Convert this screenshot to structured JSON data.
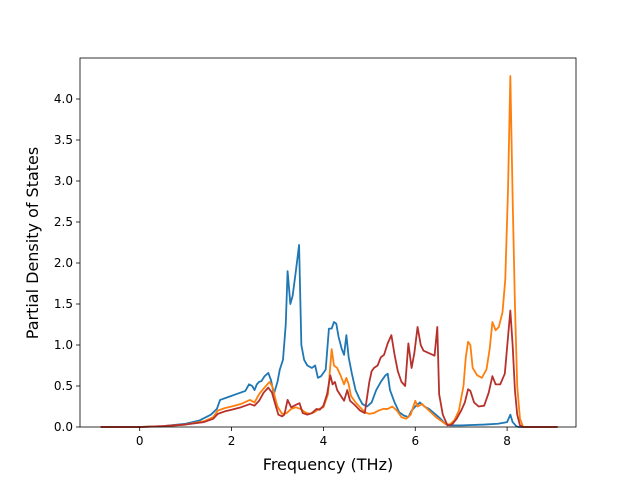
{
  "chart_data": {
    "type": "line",
    "title": "",
    "xlabel": "Frequency (THz)",
    "ylabel": "Partial Density of States",
    "xlim": [
      -1.3,
      9.5
    ],
    "ylim": [
      0.0,
      4.5
    ],
    "xticks": [
      0,
      2,
      4,
      6,
      8
    ],
    "yticks": [
      0.0,
      0.5,
      1.0,
      1.5,
      2.0,
      2.5,
      3.0,
      3.5,
      4.0
    ],
    "xtick_labels": [
      "0",
      "2",
      "4",
      "6",
      "8"
    ],
    "ytick_labels": [
      "0.0",
      "0.5",
      "1.0",
      "1.5",
      "2.0",
      "2.5",
      "3.0",
      "3.5",
      "4.0"
    ],
    "grid": false,
    "legend": false,
    "series": [
      {
        "color": "#1f77b4",
        "points": [
          [
            -0.85,
            0
          ],
          [
            0,
            0
          ],
          [
            0.5,
            0.01
          ],
          [
            1.0,
            0.04
          ],
          [
            1.3,
            0.08
          ],
          [
            1.55,
            0.15
          ],
          [
            1.68,
            0.22
          ],
          [
            1.75,
            0.33
          ],
          [
            1.9,
            0.36
          ],
          [
            2.1,
            0.4
          ],
          [
            2.3,
            0.44
          ],
          [
            2.38,
            0.52
          ],
          [
            2.45,
            0.5
          ],
          [
            2.5,
            0.45
          ],
          [
            2.55,
            0.52
          ],
          [
            2.6,
            0.55
          ],
          [
            2.65,
            0.56
          ],
          [
            2.72,
            0.62
          ],
          [
            2.8,
            0.66
          ],
          [
            2.86,
            0.57
          ],
          [
            2.92,
            0.4
          ],
          [
            3.0,
            0.55
          ],
          [
            3.05,
            0.7
          ],
          [
            3.12,
            0.82
          ],
          [
            3.18,
            1.25
          ],
          [
            3.22,
            1.9
          ],
          [
            3.28,
            1.5
          ],
          [
            3.33,
            1.6
          ],
          [
            3.4,
            1.9
          ],
          [
            3.47,
            2.22
          ],
          [
            3.52,
            1.0
          ],
          [
            3.58,
            0.82
          ],
          [
            3.65,
            0.75
          ],
          [
            3.75,
            0.72
          ],
          [
            3.82,
            0.75
          ],
          [
            3.88,
            0.6
          ],
          [
            3.95,
            0.62
          ],
          [
            4.05,
            0.7
          ],
          [
            4.12,
            1.2
          ],
          [
            4.18,
            1.2
          ],
          [
            4.23,
            1.28
          ],
          [
            4.28,
            1.26
          ],
          [
            4.33,
            1.1
          ],
          [
            4.4,
            0.95
          ],
          [
            4.45,
            0.88
          ],
          [
            4.5,
            1.12
          ],
          [
            4.55,
            0.85
          ],
          [
            4.62,
            0.65
          ],
          [
            4.7,
            0.45
          ],
          [
            4.78,
            0.35
          ],
          [
            4.85,
            0.28
          ],
          [
            4.95,
            0.25
          ],
          [
            5.05,
            0.3
          ],
          [
            5.15,
            0.45
          ],
          [
            5.25,
            0.55
          ],
          [
            5.35,
            0.63
          ],
          [
            5.4,
            0.65
          ],
          [
            5.45,
            0.45
          ],
          [
            5.55,
            0.3
          ],
          [
            5.65,
            0.18
          ],
          [
            5.75,
            0.14
          ],
          [
            5.85,
            0.12
          ],
          [
            5.92,
            0.2
          ],
          [
            6.0,
            0.25
          ],
          [
            6.1,
            0.3
          ],
          [
            6.2,
            0.25
          ],
          [
            6.3,
            0.22
          ],
          [
            6.45,
            0.15
          ],
          [
            6.55,
            0.1
          ],
          [
            6.65,
            0.04
          ],
          [
            6.75,
            0.02
          ],
          [
            7.0,
            0.02
          ],
          [
            7.5,
            0.03
          ],
          [
            7.8,
            0.04
          ],
          [
            8.0,
            0.06
          ],
          [
            8.07,
            0.15
          ],
          [
            8.12,
            0.06
          ],
          [
            8.2,
            0.01
          ],
          [
            8.25,
            0
          ],
          [
            9.1,
            0
          ]
        ]
      },
      {
        "color": "#ff7f0e",
        "points": [
          [
            -0.85,
            0
          ],
          [
            0,
            0
          ],
          [
            0.5,
            0.01
          ],
          [
            1.0,
            0.03
          ],
          [
            1.4,
            0.07
          ],
          [
            1.6,
            0.12
          ],
          [
            1.7,
            0.2
          ],
          [
            1.85,
            0.23
          ],
          [
            2.0,
            0.25
          ],
          [
            2.2,
            0.28
          ],
          [
            2.4,
            0.33
          ],
          [
            2.5,
            0.3
          ],
          [
            2.6,
            0.4
          ],
          [
            2.7,
            0.47
          ],
          [
            2.78,
            0.52
          ],
          [
            2.83,
            0.55
          ],
          [
            2.9,
            0.48
          ],
          [
            2.95,
            0.35
          ],
          [
            3.0,
            0.25
          ],
          [
            3.1,
            0.16
          ],
          [
            3.2,
            0.17
          ],
          [
            3.3,
            0.22
          ],
          [
            3.4,
            0.24
          ],
          [
            3.5,
            0.22
          ],
          [
            3.6,
            0.18
          ],
          [
            3.7,
            0.16
          ],
          [
            3.8,
            0.18
          ],
          [
            3.9,
            0.22
          ],
          [
            4.0,
            0.24
          ],
          [
            4.1,
            0.4
          ],
          [
            4.18,
            0.95
          ],
          [
            4.23,
            0.75
          ],
          [
            4.3,
            0.72
          ],
          [
            4.38,
            0.62
          ],
          [
            4.45,
            0.52
          ],
          [
            4.5,
            0.6
          ],
          [
            4.55,
            0.52
          ],
          [
            4.6,
            0.38
          ],
          [
            4.7,
            0.3
          ],
          [
            4.8,
            0.24
          ],
          [
            4.9,
            0.18
          ],
          [
            5.0,
            0.16
          ],
          [
            5.1,
            0.17
          ],
          [
            5.2,
            0.2
          ],
          [
            5.3,
            0.22
          ],
          [
            5.4,
            0.22
          ],
          [
            5.5,
            0.25
          ],
          [
            5.6,
            0.2
          ],
          [
            5.7,
            0.12
          ],
          [
            5.8,
            0.1
          ],
          [
            5.9,
            0.15
          ],
          [
            6.0,
            0.32
          ],
          [
            6.05,
            0.25
          ],
          [
            6.15,
            0.28
          ],
          [
            6.3,
            0.2
          ],
          [
            6.45,
            0.12
          ],
          [
            6.55,
            0.08
          ],
          [
            6.65,
            0.04
          ],
          [
            6.75,
            0.03
          ],
          [
            6.85,
            0.08
          ],
          [
            6.95,
            0.2
          ],
          [
            7.05,
            0.5
          ],
          [
            7.1,
            0.85
          ],
          [
            7.15,
            1.04
          ],
          [
            7.2,
            1.0
          ],
          [
            7.25,
            0.72
          ],
          [
            7.35,
            0.63
          ],
          [
            7.45,
            0.6
          ],
          [
            7.55,
            0.7
          ],
          [
            7.62,
            0.95
          ],
          [
            7.68,
            1.28
          ],
          [
            7.75,
            1.18
          ],
          [
            7.82,
            1.22
          ],
          [
            7.9,
            1.4
          ],
          [
            7.96,
            1.8
          ],
          [
            8.02,
            2.9
          ],
          [
            8.07,
            4.28
          ],
          [
            8.12,
            2.8
          ],
          [
            8.17,
            1.5
          ],
          [
            8.22,
            0.5
          ],
          [
            8.28,
            0.1
          ],
          [
            8.35,
            0
          ],
          [
            9.1,
            0
          ]
        ]
      },
      {
        "color": "#b7312c",
        "points": [
          [
            -0.85,
            0
          ],
          [
            0,
            0
          ],
          [
            0.5,
            0.01
          ],
          [
            1.0,
            0.03
          ],
          [
            1.4,
            0.06
          ],
          [
            1.6,
            0.1
          ],
          [
            1.7,
            0.16
          ],
          [
            1.85,
            0.19
          ],
          [
            2.0,
            0.21
          ],
          [
            2.2,
            0.24
          ],
          [
            2.4,
            0.28
          ],
          [
            2.5,
            0.26
          ],
          [
            2.6,
            0.32
          ],
          [
            2.7,
            0.42
          ],
          [
            2.8,
            0.48
          ],
          [
            2.88,
            0.42
          ],
          [
            2.95,
            0.28
          ],
          [
            3.02,
            0.15
          ],
          [
            3.1,
            0.13
          ],
          [
            3.15,
            0.15
          ],
          [
            3.22,
            0.33
          ],
          [
            3.3,
            0.24
          ],
          [
            3.4,
            0.27
          ],
          [
            3.48,
            0.29
          ],
          [
            3.55,
            0.17
          ],
          [
            3.65,
            0.15
          ],
          [
            3.75,
            0.17
          ],
          [
            3.85,
            0.22
          ],
          [
            3.92,
            0.21
          ],
          [
            4.0,
            0.26
          ],
          [
            4.08,
            0.4
          ],
          [
            4.15,
            0.63
          ],
          [
            4.2,
            0.52
          ],
          [
            4.25,
            0.55
          ],
          [
            4.3,
            0.45
          ],
          [
            4.38,
            0.38
          ],
          [
            4.45,
            0.32
          ],
          [
            4.52,
            0.45
          ],
          [
            4.58,
            0.32
          ],
          [
            4.68,
            0.27
          ],
          [
            4.8,
            0.2
          ],
          [
            4.9,
            0.17
          ],
          [
            5.0,
            0.55
          ],
          [
            5.05,
            0.68
          ],
          [
            5.1,
            0.72
          ],
          [
            5.18,
            0.75
          ],
          [
            5.25,
            0.85
          ],
          [
            5.32,
            0.88
          ],
          [
            5.4,
            1.02
          ],
          [
            5.48,
            1.12
          ],
          [
            5.55,
            0.88
          ],
          [
            5.62,
            0.68
          ],
          [
            5.7,
            0.55
          ],
          [
            5.78,
            0.5
          ],
          [
            5.85,
            1.02
          ],
          [
            5.92,
            0.72
          ],
          [
            5.98,
            0.9
          ],
          [
            6.05,
            1.22
          ],
          [
            6.12,
            1.0
          ],
          [
            6.18,
            0.93
          ],
          [
            6.3,
            0.9
          ],
          [
            6.42,
            0.87
          ],
          [
            6.48,
            1.22
          ],
          [
            6.52,
            0.4
          ],
          [
            6.6,
            0.15
          ],
          [
            6.7,
            0.02
          ],
          [
            6.8,
            0.03
          ],
          [
            6.9,
            0.1
          ],
          [
            7.0,
            0.2
          ],
          [
            7.08,
            0.3
          ],
          [
            7.15,
            0.46
          ],
          [
            7.2,
            0.44
          ],
          [
            7.28,
            0.3
          ],
          [
            7.38,
            0.25
          ],
          [
            7.5,
            0.26
          ],
          [
            7.6,
            0.42
          ],
          [
            7.68,
            0.62
          ],
          [
            7.75,
            0.52
          ],
          [
            7.85,
            0.52
          ],
          [
            7.95,
            0.65
          ],
          [
            8.02,
            1.1
          ],
          [
            8.07,
            1.42
          ],
          [
            8.12,
            1.0
          ],
          [
            8.17,
            0.45
          ],
          [
            8.22,
            0.15
          ],
          [
            8.28,
            0.02
          ],
          [
            8.35,
            0
          ],
          [
            9.1,
            0
          ]
        ]
      }
    ]
  }
}
